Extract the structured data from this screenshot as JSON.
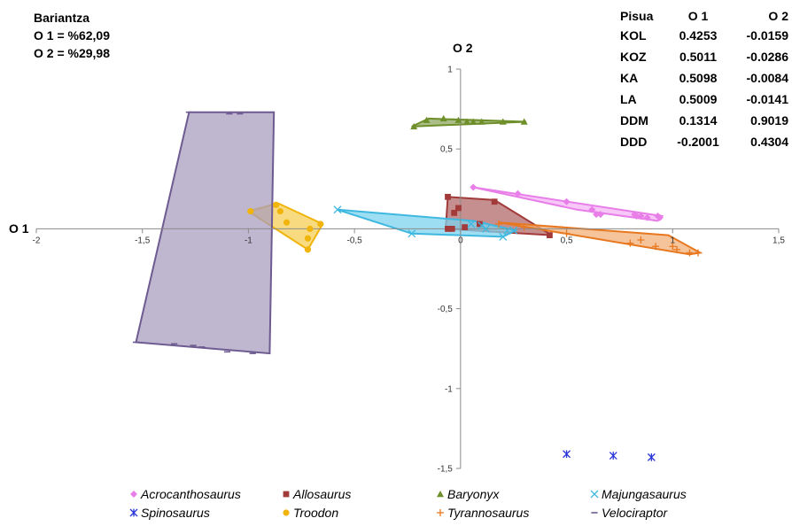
{
  "variance": {
    "title": "Bariantza",
    "o1": "O 1 = %62,09",
    "o2": "O 2 = %29,98"
  },
  "loadings": {
    "headers": [
      "Pisua",
      "O 1",
      "O 2"
    ],
    "rows": [
      [
        "KOL",
        "0.4253",
        "-0.0159"
      ],
      [
        "KOZ",
        "0.5011",
        "-0.0286"
      ],
      [
        "KA",
        "0.5098",
        "-0.0084"
      ],
      [
        "LA",
        "0.5009",
        "-0.0141"
      ],
      [
        "DDM",
        "0.1314",
        "0.9019"
      ],
      [
        "DDD",
        "-0.2001",
        "0.4304"
      ]
    ]
  },
  "chart_data": {
    "type": "scatter",
    "xlabel": "O 1",
    "ylabel": "O 2",
    "xlim": [
      -2,
      1.5
    ],
    "ylim": [
      -1.5,
      1
    ],
    "x_ticks": [
      -2,
      -1.5,
      -1,
      -0.5,
      0,
      0.5,
      1,
      1.5
    ],
    "x_tick_labels": [
      "-2",
      "-1,5",
      "-1",
      "-0,5",
      "0",
      "0,5",
      "1",
      "1,5"
    ],
    "y_ticks": [
      -1.5,
      -1,
      -0.5,
      0.5,
      1
    ],
    "y_tick_labels": [
      "-1,5",
      "-1",
      "-0,5",
      "0,5",
      "1"
    ],
    "grid": false,
    "legend_position": "bottom",
    "series": [
      {
        "name": "Acrocanthosaurus",
        "marker": "diamond",
        "color": "#e87ee8",
        "fill": "#f4b6f4",
        "points": [
          [
            0.06,
            0.26
          ],
          [
            0.27,
            0.22
          ],
          [
            0.5,
            0.17
          ],
          [
            0.62,
            0.12
          ],
          [
            0.64,
            0.09
          ],
          [
            0.66,
            0.09
          ],
          [
            0.82,
            0.09
          ],
          [
            0.83,
            0.08
          ],
          [
            0.85,
            0.08
          ],
          [
            0.88,
            0.07
          ],
          [
            0.94,
            0.07
          ],
          [
            0.93,
            0.08
          ]
        ],
        "hull": [
          [
            0.06,
            0.26
          ],
          [
            0.95,
            0.08
          ],
          [
            0.93,
            0.05
          ],
          [
            0.55,
            0.12
          ],
          [
            0.06,
            0.26
          ]
        ]
      },
      {
        "name": "Allosaurus",
        "marker": "square",
        "color": "#a23a3a",
        "fill": "#b36a6a",
        "points": [
          [
            -0.06,
            0.2
          ],
          [
            0.16,
            0.17
          ],
          [
            -0.01,
            0.13
          ],
          [
            -0.03,
            0.1
          ],
          [
            0.09,
            0.03
          ],
          [
            0.02,
            0.01
          ],
          [
            -0.06,
            0
          ],
          [
            -0.04,
            0
          ],
          [
            0.42,
            -0.04
          ]
        ],
        "hull": [
          [
            -0.06,
            0.2
          ],
          [
            0.16,
            0.18
          ],
          [
            0.43,
            -0.04
          ],
          [
            -0.07,
            0
          ],
          [
            -0.06,
            0.2
          ]
        ]
      },
      {
        "name": "Baryonyx",
        "marker": "triangle",
        "color": "#6e8f2a",
        "fill": "#8fa860",
        "points": [
          [
            -0.22,
            0.64
          ],
          [
            -0.16,
            0.68
          ],
          [
            -0.08,
            0.69
          ],
          [
            -0.01,
            0.68
          ],
          [
            0.03,
            0.67
          ],
          [
            0.06,
            0.67
          ],
          [
            0.1,
            0.67
          ],
          [
            0.2,
            0.67
          ],
          [
            0.3,
            0.67
          ]
        ],
        "hull": [
          [
            -0.23,
            0.64
          ],
          [
            -0.15,
            0.69
          ],
          [
            0.31,
            0.67
          ],
          [
            -0.23,
            0.64
          ]
        ]
      },
      {
        "name": "Majungasaurus",
        "marker": "x",
        "color": "#3fb8e0",
        "fill": "#7dd3ef",
        "points": [
          [
            -0.58,
            0.12
          ],
          [
            -0.23,
            -0.03
          ],
          [
            0.2,
            -0.05
          ],
          [
            0.05,
            0.03
          ],
          [
            0.1,
            0.02
          ],
          [
            0.12,
            0
          ],
          [
            0.22,
            -0.01
          ],
          [
            0.25,
            -0.01
          ]
        ],
        "hull": [
          [
            -0.58,
            0.12
          ],
          [
            0.06,
            0.05
          ],
          [
            0.26,
            -0.01
          ],
          [
            0.2,
            -0.05
          ],
          [
            -0.23,
            -0.03
          ],
          [
            -0.58,
            0.12
          ]
        ]
      },
      {
        "name": "Spinosaurus",
        "marker": "asterisk",
        "color": "#2a36d8",
        "fill": "none",
        "points": [
          [
            0.5,
            -1.41
          ],
          [
            0.72,
            -1.42
          ],
          [
            0.9,
            -1.43
          ]
        ],
        "hull": []
      },
      {
        "name": "Troodon",
        "marker": "circle",
        "color": "#f0b40a",
        "fill": "#f6cf55",
        "points": [
          [
            -0.99,
            0.11
          ],
          [
            -0.87,
            0.15
          ],
          [
            -0.85,
            0.11
          ],
          [
            -0.82,
            0.04
          ],
          [
            -0.71,
            0.0
          ],
          [
            -0.72,
            -0.06
          ],
          [
            -0.72,
            -0.13
          ],
          [
            -0.66,
            0.03
          ]
        ],
        "hull": [
          [
            -1.0,
            0.11
          ],
          [
            -0.86,
            0.16
          ],
          [
            -0.65,
            0.03
          ],
          [
            -0.72,
            -0.13
          ],
          [
            -1.0,
            0.11
          ]
        ]
      },
      {
        "name": "Tyrannosaurus",
        "marker": "plus",
        "color": "#e87820",
        "fill": "#f2b07a",
        "points": [
          [
            0.18,
            0.03
          ],
          [
            0.3,
            0.01
          ],
          [
            0.5,
            -0.03
          ],
          [
            0.8,
            -0.09
          ],
          [
            0.85,
            -0.07
          ],
          [
            0.92,
            -0.11
          ],
          [
            1.0,
            -0.11
          ],
          [
            1.02,
            -0.13
          ],
          [
            1.08,
            -0.15
          ],
          [
            1.12,
            -0.15
          ]
        ],
        "hull": [
          [
            0.18,
            0.04
          ],
          [
            0.98,
            -0.04
          ],
          [
            1.13,
            -0.15
          ],
          [
            1.08,
            -0.16
          ],
          [
            0.18,
            0.04
          ]
        ]
      },
      {
        "name": "Velociraptor",
        "marker": "dash",
        "color": "#6d5b91",
        "fill": "#a99ebf",
        "points": [
          [
            -1.28,
            0.73
          ],
          [
            -1.09,
            0.72
          ],
          [
            -1.04,
            0.72
          ],
          [
            -1.53,
            -0.71
          ],
          [
            -1.35,
            -0.72
          ],
          [
            -1.26,
            -0.73
          ],
          [
            -1.22,
            -0.74
          ],
          [
            -1.1,
            -0.77
          ],
          [
            -0.98,
            -0.78
          ]
        ],
        "hull": [
          [
            -1.28,
            0.73
          ],
          [
            -0.88,
            0.73
          ],
          [
            -0.9,
            -0.78
          ],
          [
            -1.53,
            -0.71
          ],
          [
            -1.28,
            0.73
          ]
        ]
      }
    ]
  }
}
